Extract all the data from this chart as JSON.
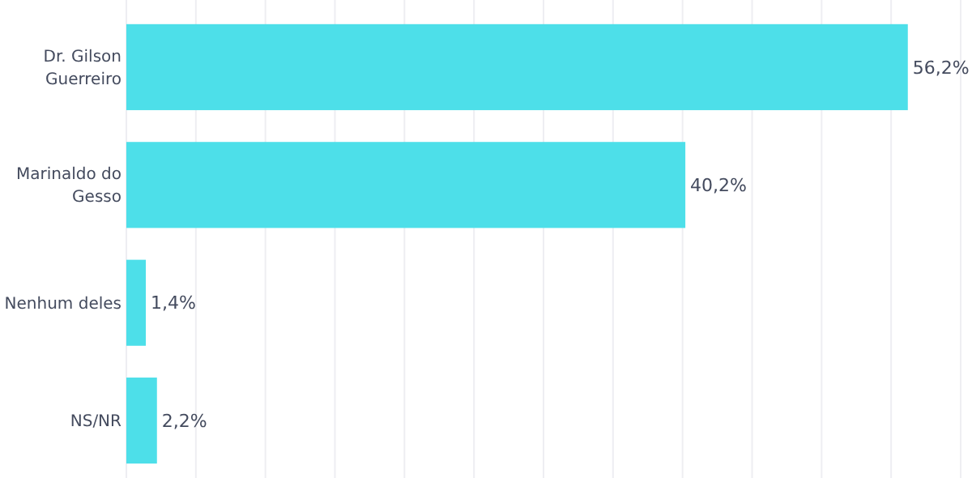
{
  "chart_data": {
    "type": "bar",
    "orientation": "horizontal",
    "categories": [
      "Dr. Gilson Guerreiro",
      "Marinaldo do Gesso",
      "Nenhum deles",
      "NS/NR"
    ],
    "values": [
      56.2,
      40.2,
      1.4,
      2.2
    ],
    "value_labels": [
      "56,2%",
      "40,2%",
      "1,4%",
      "2,2%"
    ],
    "color": "#4ddfe9",
    "xlim": [
      0,
      60
    ],
    "xticks": [
      {
        "value": 0,
        "label": null
      },
      {
        "value": 5,
        "label": null
      },
      {
        "value": 10,
        "label": null
      },
      {
        "value": 15,
        "label": null
      },
      {
        "value": 20,
        "label": null
      },
      {
        "value": 25,
        "label": null
      },
      {
        "value": 30,
        "label": null
      },
      {
        "value": 35,
        "label": null
      },
      {
        "value": 40,
        "label": null
      },
      {
        "value": 45,
        "label": null
      },
      {
        "value": 50,
        "label": null
      },
      {
        "value": 55,
        "label": null
      },
      {
        "value": 60,
        "label": null
      }
    ],
    "grid": "x",
    "tick_labels": "y"
  }
}
